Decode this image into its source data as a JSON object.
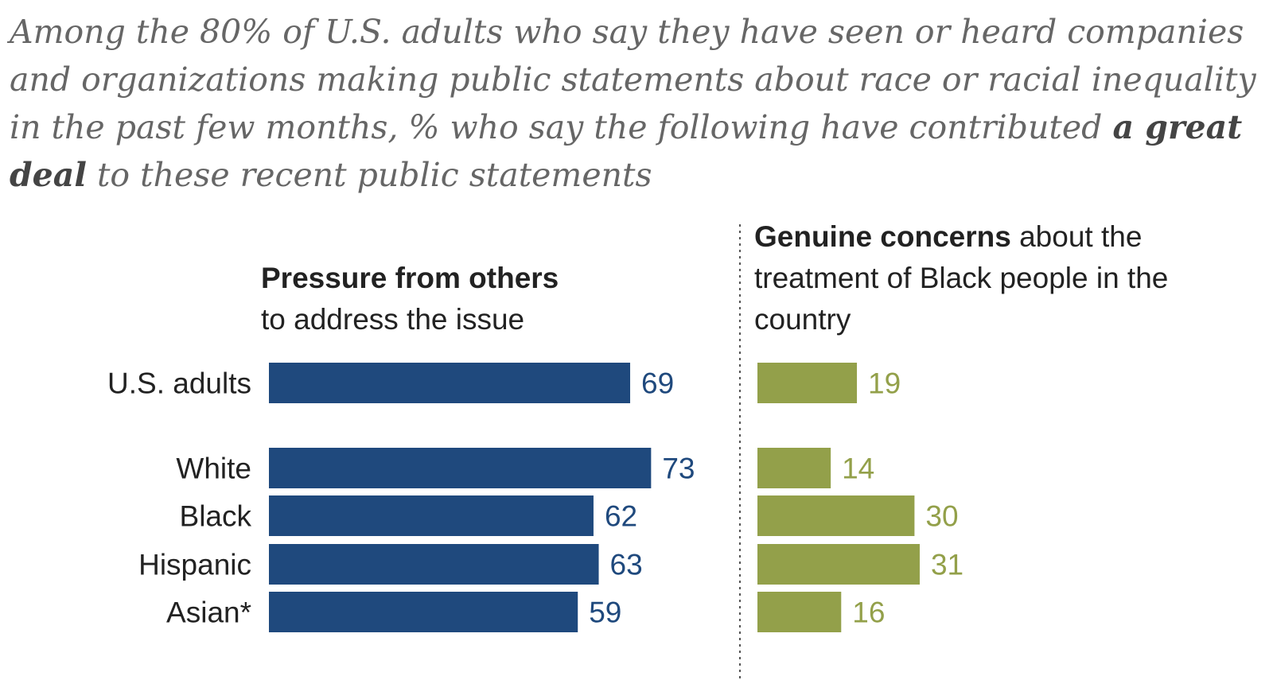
{
  "title": {
    "part1": "Among the 80% of U.S. adults who say they have seen or heard companies and organizations making public statements about race or racial inequality in the past few months, % who say the following have contributed ",
    "emphasis": "a great deal",
    "part2": " to these recent public statements"
  },
  "chart_data": [
    {
      "type": "bar",
      "title_bold": "Pressure from others",
      "title_rest": "to address the issue",
      "categories": [
        "U.S. adults",
        "White",
        "Black",
        "Hispanic",
        "Asian*"
      ],
      "values": [
        69,
        73,
        62,
        63,
        59
      ],
      "color": "#1f497d",
      "orientation": "horizontal"
    },
    {
      "type": "bar",
      "title_bold": "Genuine concerns",
      "title_rest": " about the treatment of Black people in the country",
      "categories": [
        "U.S. adults",
        "White",
        "Black",
        "Hispanic",
        "Asian*"
      ],
      "values": [
        19,
        14,
        30,
        31,
        16
      ],
      "color": "#93a04a",
      "orientation": "horizontal"
    }
  ]
}
